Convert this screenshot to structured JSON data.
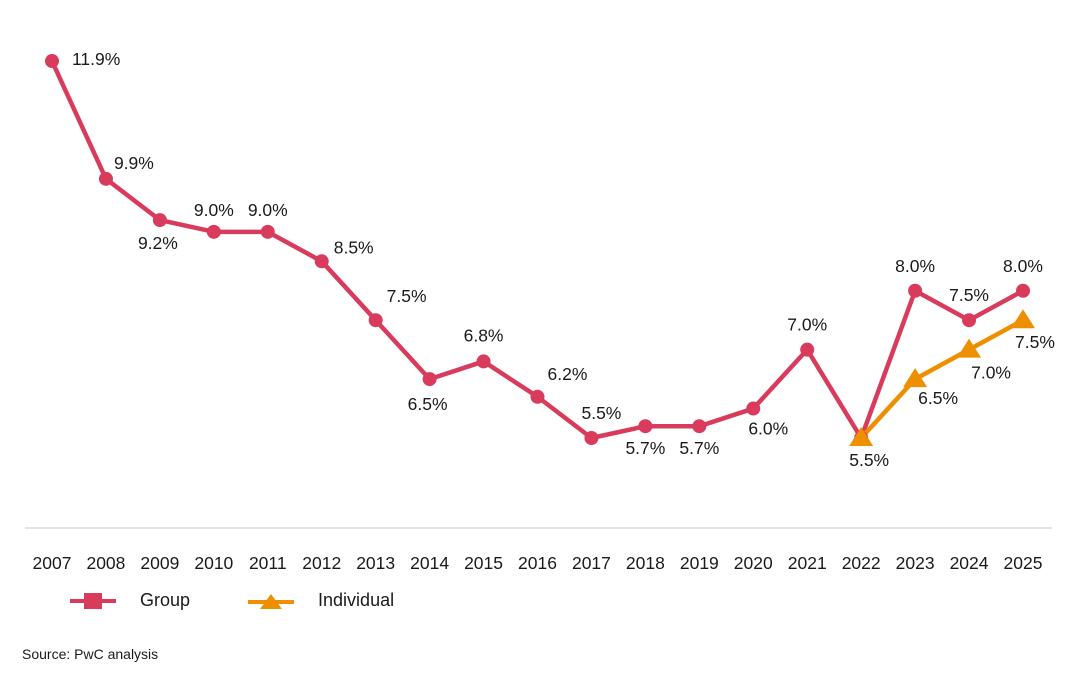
{
  "chart_data": {
    "type": "line",
    "title": "",
    "xlabel": "",
    "ylabel": "",
    "x": [
      "2007",
      "2008",
      "2009",
      "2010",
      "2011",
      "2012",
      "2013",
      "2014",
      "2015",
      "2016",
      "2017",
      "2018",
      "2019",
      "2020",
      "2021",
      "2022",
      "2023",
      "2024",
      "2025"
    ],
    "series": [
      {
        "name": "Group",
        "color": "#d93b5c",
        "marker": "circle",
        "values": [
          11.9,
          9.9,
          9.2,
          9.0,
          9.0,
          8.5,
          7.5,
          6.5,
          6.8,
          6.2,
          5.5,
          5.7,
          5.7,
          6.0,
          7.0,
          5.5,
          8.0,
          7.5,
          8.0
        ],
        "labels": [
          "11.9%",
          "9.9%",
          "9.2%",
          "9.0%",
          "9.0%",
          "8.5%",
          "7.5%",
          "6.5%",
          "6.8%",
          "6.2%",
          "5.5%",
          "5.7%",
          "5.7%",
          "6.0%",
          "7.0%",
          "5.5%",
          "8.0%",
          "7.5%",
          "8.0%"
        ]
      },
      {
        "name": "Individual",
        "color": "#ee8f00",
        "marker": "triangle",
        "values": [
          null,
          null,
          null,
          null,
          null,
          null,
          null,
          null,
          null,
          null,
          null,
          null,
          null,
          null,
          null,
          5.5,
          6.5,
          7.0,
          7.5
        ],
        "labels": [
          null,
          null,
          null,
          null,
          null,
          null,
          null,
          null,
          null,
          null,
          null,
          null,
          null,
          null,
          null,
          null,
          "6.5%",
          "7.0%",
          "7.5%"
        ]
      }
    ],
    "ylim": [
      4.0,
      12.5
    ],
    "grid": false,
    "legend": "bottom-left",
    "source": "Source: PwC analysis"
  }
}
